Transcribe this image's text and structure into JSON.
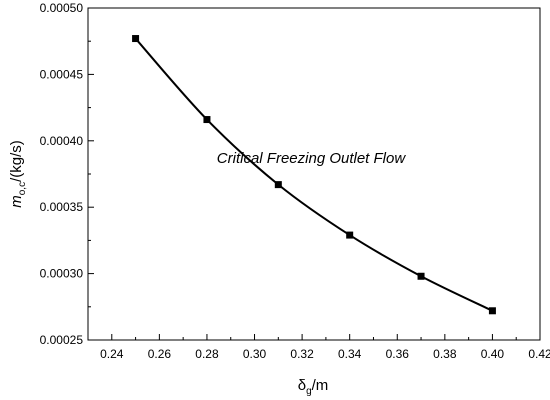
{
  "chart_data": {
    "type": "line",
    "x": [
      0.25,
      0.28,
      0.31,
      0.34,
      0.37,
      0.4
    ],
    "series": [
      {
        "values": [
          0.000477,
          0.000416,
          0.000367,
          0.000329,
          0.000298,
          0.000272
        ]
      }
    ],
    "xlim": [
      0.23,
      0.42
    ],
    "ylim": [
      0.00025,
      0.0005
    ],
    "x_ticks": [
      "0.24",
      "0.26",
      "0.28",
      "0.30",
      "0.32",
      "0.34",
      "0.36",
      "0.38",
      "0.40",
      "0.42"
    ],
    "y_ticks": [
      "0.00025",
      "0.00030",
      "0.00035",
      "0.00040",
      "0.00045",
      "0.00050"
    ],
    "annotation": "Critical Freezing Outlet Flow",
    "xlabel": {
      "main": "δ",
      "sub": "g",
      "rest": "/m"
    },
    "ylabel": {
      "main": "m",
      "sub": "o,c",
      "rest": "/(kg/s)"
    },
    "grid": false,
    "marker": "square",
    "colors": {
      "line": "#000000",
      "marker": "#000000"
    }
  }
}
